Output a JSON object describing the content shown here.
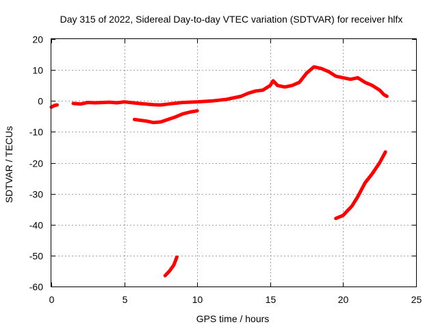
{
  "chart_data": {
    "type": "line",
    "title": "Day 315 of 2022, Sidereal Day-to-day VTEC variation (SDTVAR) for receiver hlfx",
    "xlabel": "GPS time / hours",
    "ylabel": "SDTVAR / TECUs",
    "xlim": [
      0,
      25
    ],
    "ylim": [
      -60,
      20
    ],
    "xticks": [
      0,
      5,
      10,
      15,
      20,
      25
    ],
    "yticks": [
      -60,
      -50,
      -40,
      -30,
      -20,
      -10,
      0,
      10,
      20
    ],
    "xtick_labels": [
      "0",
      "5",
      "10",
      "15",
      "20",
      "25"
    ],
    "ytick_labels": [
      "-60",
      "-50",
      "-40",
      "-30",
      "-20",
      "-10",
      "0",
      "10",
      "20"
    ],
    "grid": true,
    "legend": "none",
    "colors": {
      "series": "#ff0000",
      "grid": "#a0a0a0",
      "frame": "#000000"
    },
    "series": [
      {
        "name": "segment-a",
        "x": [
          0.0,
          0.2,
          0.4
        ],
        "y": [
          -2.0,
          -1.5,
          -1.3
        ]
      },
      {
        "name": "segment-main",
        "x": [
          1.5,
          2.0,
          2.5,
          3.0,
          4.0,
          4.5,
          5.0,
          6.0,
          7.0,
          7.5,
          8.0,
          9.0,
          10.0,
          11.0,
          12.0,
          13.0,
          13.5,
          14.0,
          14.5,
          15.0,
          15.2,
          15.5,
          16.0,
          16.5,
          17.0,
          17.5,
          18.0,
          18.5,
          19.0,
          19.5,
          20.0,
          20.5,
          21.0,
          21.5,
          22.0,
          22.5,
          22.8,
          23.0
        ],
        "y": [
          -0.8,
          -1.0,
          -0.5,
          -0.6,
          -0.4,
          -0.6,
          -0.3,
          -0.8,
          -1.2,
          -1.3,
          -1.0,
          -0.5,
          -0.3,
          0.0,
          0.5,
          1.5,
          2.5,
          3.2,
          3.5,
          5.0,
          6.5,
          5.0,
          4.5,
          5.0,
          6.0,
          9.0,
          11.0,
          10.5,
          9.5,
          8.0,
          7.5,
          7.0,
          7.5,
          6.0,
          5.0,
          3.5,
          2.0,
          1.5
        ]
      },
      {
        "name": "segment-lower-arc",
        "x": [
          5.7,
          6.5,
          7.0,
          7.5,
          8.0,
          8.5,
          9.0,
          9.5,
          10.0
        ],
        "y": [
          -6.0,
          -6.5,
          -7.0,
          -6.8,
          -6.0,
          -5.2,
          -4.2,
          -3.6,
          -3.2
        ]
      },
      {
        "name": "segment-steep-low",
        "x": [
          7.8,
          8.1,
          8.4,
          8.6
        ],
        "y": [
          -56.5,
          -55.0,
          -53.0,
          -50.5
        ]
      },
      {
        "name": "segment-steep-right",
        "x": [
          19.5,
          20.0,
          20.3,
          20.6,
          21.0,
          21.5,
          22.0,
          22.5,
          22.9
        ],
        "y": [
          -38.0,
          -37.0,
          -35.5,
          -34.0,
          -31.0,
          -26.5,
          -23.5,
          -20.0,
          -16.5
        ]
      }
    ]
  }
}
